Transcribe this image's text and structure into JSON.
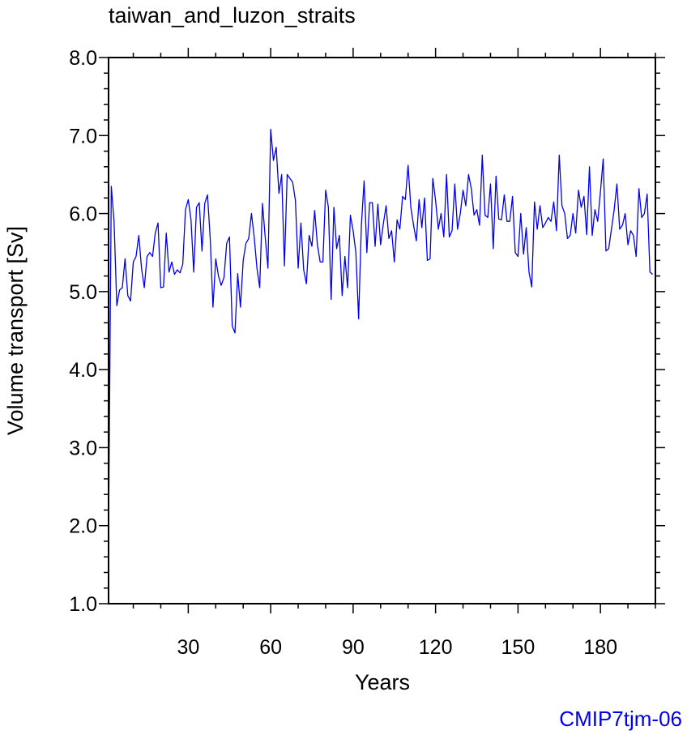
{
  "chart_data": {
    "type": "line",
    "title": "taiwan_and_luzon_straits",
    "xlabel": "Years",
    "ylabel": "Volume transport [Sv]",
    "xlim": [
      1,
      200
    ],
    "ylim": [
      1.0,
      8.0
    ],
    "x_ticks": [
      30,
      60,
      90,
      120,
      150,
      180
    ],
    "x_tick_labels": [
      "30",
      "60",
      "90",
      "120",
      "150",
      "180"
    ],
    "y_ticks": [
      1,
      2,
      3,
      4,
      5,
      6,
      7,
      8
    ],
    "y_tick_labels": [
      "1.0",
      "2.0",
      "3.0",
      "4.0",
      "5.0",
      "6.0",
      "7.0",
      "8.0"
    ],
    "grid": false,
    "line_color": "#0000ee",
    "series": [
      {
        "x_start": 1,
        "x_step": 1,
        "values": [
          1.9,
          6.35,
          5.9,
          4.82,
          5.02,
          5.05,
          5.42,
          4.95,
          4.88,
          5.38,
          5.45,
          5.72,
          5.3,
          5.05,
          5.45,
          5.5,
          5.45,
          5.75,
          5.88,
          5.05,
          5.06,
          5.75,
          5.25,
          5.38,
          5.22,
          5.28,
          5.24,
          5.35,
          6.05,
          6.18,
          5.92,
          5.25,
          6.08,
          6.14,
          5.52,
          6.13,
          6.24,
          5.68,
          4.8,
          5.42,
          5.2,
          5.08,
          5.18,
          5.62,
          5.7,
          4.56,
          4.47,
          5.23,
          4.8,
          5.4,
          5.62,
          5.68,
          6.0,
          5.7,
          5.3,
          5.05,
          6.13,
          5.7,
          5.3,
          7.08,
          6.68,
          6.85,
          6.26,
          6.5,
          5.33,
          6.5,
          6.45,
          6.4,
          6.17,
          5.3,
          5.88,
          5.28,
          5.1,
          5.72,
          5.58,
          6.04,
          5.6,
          5.38,
          5.38,
          6.3,
          6.08,
          4.9,
          6.08,
          5.55,
          5.72,
          4.95,
          5.45,
          5.05,
          5.98,
          5.78,
          5.5,
          4.65,
          5.85,
          6.42,
          5.5,
          6.14,
          6.14,
          5.58,
          6.12,
          5.6,
          5.87,
          6.1,
          5.68,
          5.78,
          5.38,
          5.92,
          5.8,
          6.22,
          6.18,
          6.62,
          6.08,
          5.85,
          5.65,
          6.18,
          5.82,
          6.2,
          5.4,
          5.42,
          6.45,
          6.17,
          5.8,
          6.0,
          5.7,
          6.5,
          5.7,
          5.78,
          6.38,
          5.8,
          6.0,
          6.3,
          6.1,
          6.5,
          6.32,
          5.98,
          6.05,
          5.85,
          6.75,
          5.98,
          5.95,
          6.38,
          5.55,
          6.48,
          5.93,
          5.92,
          6.24,
          5.9,
          5.9,
          6.22,
          5.5,
          5.45,
          6.0,
          5.48,
          5.82,
          5.25,
          5.06,
          6.15,
          5.8,
          6.1,
          5.82,
          5.88,
          5.95,
          5.9,
          6.15,
          5.78,
          6.75,
          6.1,
          6.0,
          5.68,
          5.72,
          6.0,
          5.75,
          6.3,
          6.08,
          6.22,
          5.73,
          6.6,
          5.72,
          6.05,
          5.9,
          6.28,
          6.7,
          5.52,
          5.55,
          5.8,
          6.05,
          6.38,
          5.8,
          5.85,
          6.0,
          5.6,
          5.78,
          5.72,
          5.45,
          6.32,
          5.95,
          6.0,
          6.25,
          5.25,
          5.22
        ]
      }
    ]
  },
  "watermark": {
    "text": "CMIP7tjm-06",
    "color": "#0000ee"
  }
}
